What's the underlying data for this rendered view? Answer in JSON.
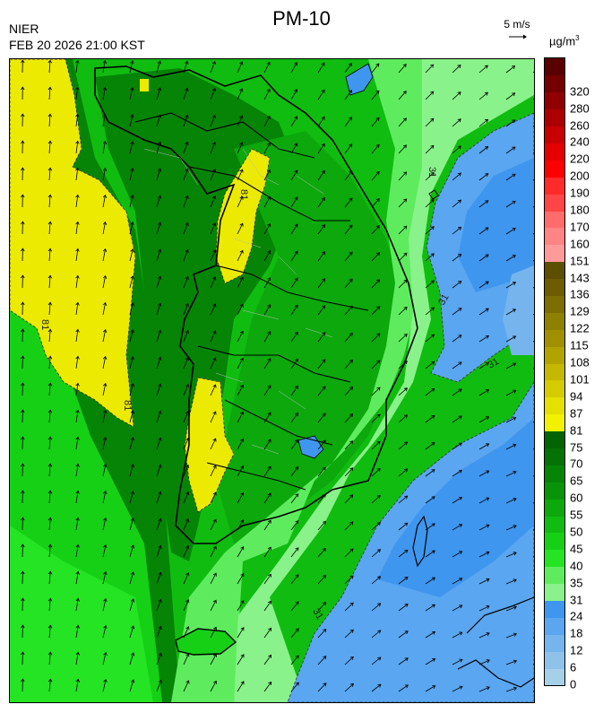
{
  "header": {
    "title": "PM-10",
    "agency": "NIER",
    "timestamp": "FEB 20 2026 21:00 KST"
  },
  "wind_scale": {
    "label": "5 m/s"
  },
  "legend": {
    "unit": "µg/m",
    "unit_superscript": "3",
    "bins": [
      {
        "label": "0",
        "color": "#a6cfe8"
      },
      {
        "label": "6",
        "color": "#8ec2ea"
      },
      {
        "label": "12",
        "color": "#76b4ee"
      },
      {
        "label": "18",
        "color": "#5aa6f0"
      },
      {
        "label": "24",
        "color": "#3f96ee"
      },
      {
        "label": "31",
        "color": "#8af28a"
      },
      {
        "label": "35",
        "color": "#5eec5e"
      },
      {
        "label": "40",
        "color": "#24e424"
      },
      {
        "label": "45",
        "color": "#16d016"
      },
      {
        "label": "50",
        "color": "#10bc10"
      },
      {
        "label": "55",
        "color": "#0ca80c"
      },
      {
        "label": "60",
        "color": "#089408"
      },
      {
        "label": "65",
        "color": "#068406"
      },
      {
        "label": "70",
        "color": "#047204"
      },
      {
        "label": "75",
        "color": "#026402"
      },
      {
        "label": "81",
        "color": "#f2f200"
      },
      {
        "label": "87",
        "color": "#e4e000"
      },
      {
        "label": "94",
        "color": "#d4cc00"
      },
      {
        "label": "101",
        "color": "#c4b800"
      },
      {
        "label": "108",
        "color": "#b2a400"
      },
      {
        "label": "115",
        "color": "#a09000"
      },
      {
        "label": "122",
        "color": "#8e8000"
      },
      {
        "label": "129",
        "color": "#7c6e00"
      },
      {
        "label": "136",
        "color": "#6c5e00"
      },
      {
        "label": "143",
        "color": "#5c5000"
      },
      {
        "label": "151",
        "color": "#ff9a9a"
      },
      {
        "label": "160",
        "color": "#ff8484"
      },
      {
        "label": "170",
        "color": "#ff6c6c"
      },
      {
        "label": "180",
        "color": "#ff4646"
      },
      {
        "label": "190",
        "color": "#ff2a2a"
      },
      {
        "label": "200",
        "color": "#ff0000"
      },
      {
        "label": "220",
        "color": "#e40000"
      },
      {
        "label": "240",
        "color": "#c80000"
      },
      {
        "label": "260",
        "color": "#ac0000"
      },
      {
        "label": "280",
        "color": "#900000"
      },
      {
        "label": "320",
        "color": "#740000"
      },
      {
        "label": "",
        "color": "#5a0000"
      }
    ]
  },
  "map": {
    "contour_labels": [
      "81",
      "81",
      "81",
      "31",
      "31",
      "31",
      "31"
    ]
  }
}
